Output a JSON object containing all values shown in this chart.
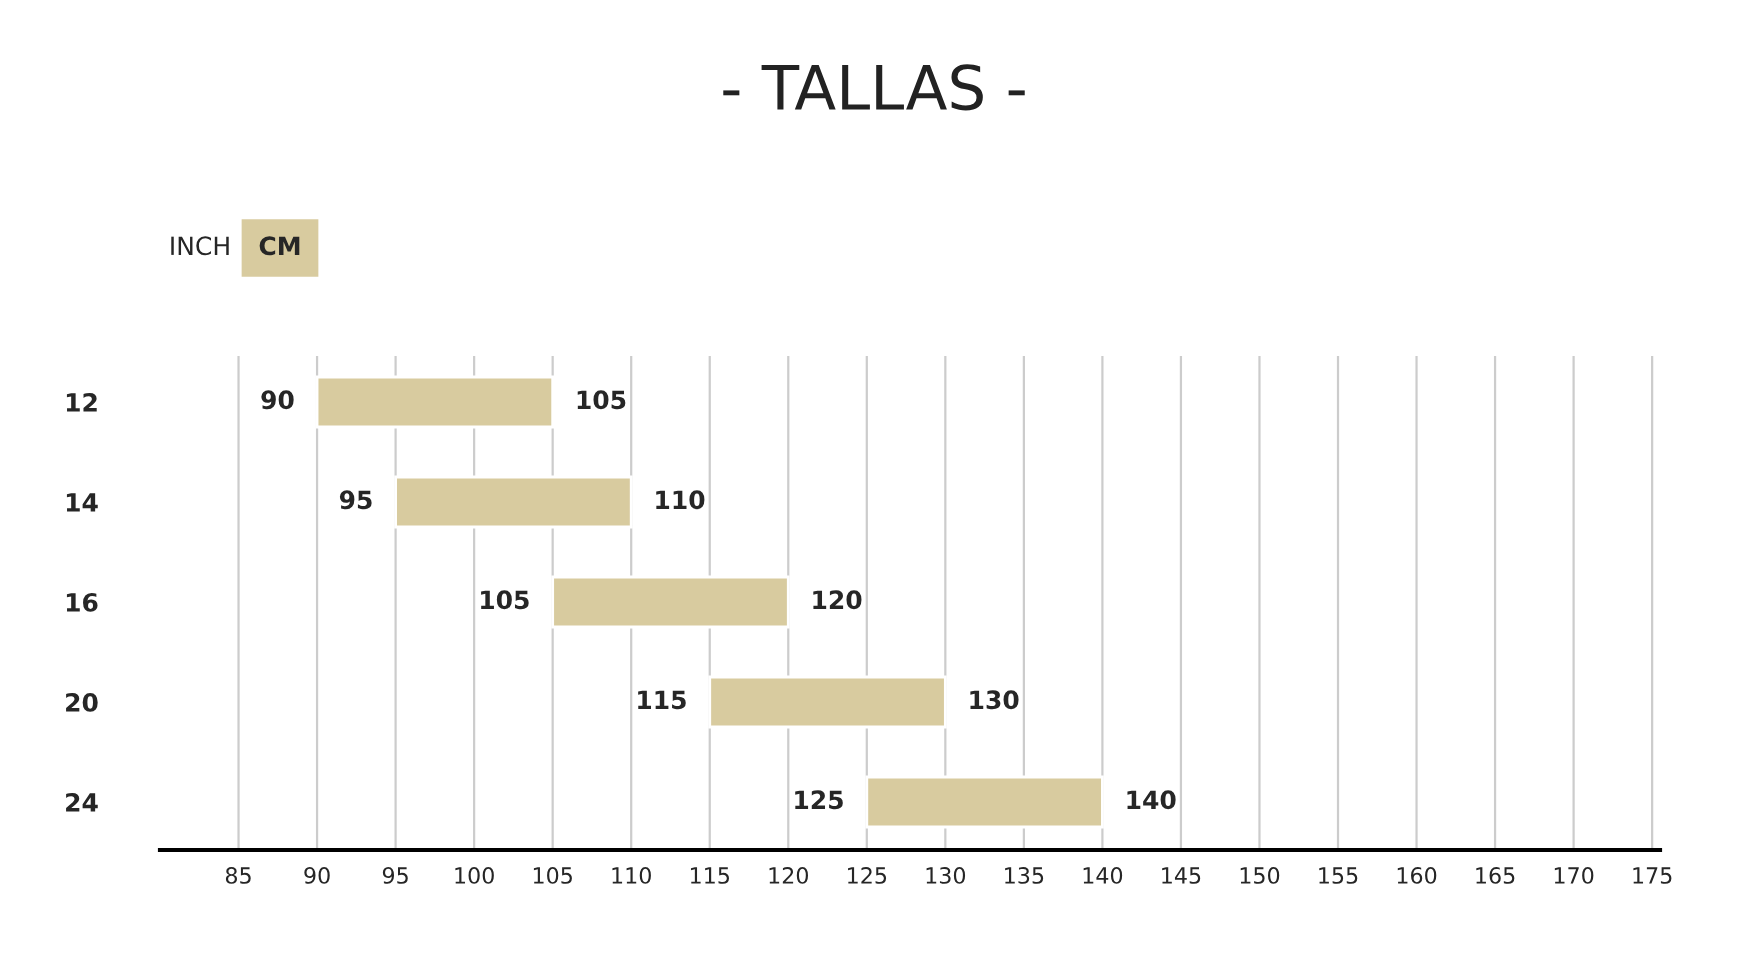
{
  "chart_data": {
    "type": "bar",
    "orientation": "horizontal",
    "title": "- TALLAS -",
    "categories": [
      "12",
      "14",
      "16",
      "20",
      "24"
    ],
    "base": [
      90,
      95,
      105,
      115,
      125
    ],
    "values": [
      15,
      15,
      15,
      15,
      15
    ],
    "color": "#d8cb9f",
    "xlim": [
      80,
      175.5
    ],
    "xticks": [
      85,
      90,
      95,
      100,
      105,
      110,
      115,
      120,
      125,
      130,
      135,
      140,
      145,
      150,
      155,
      160,
      165,
      170,
      175
    ],
    "grid": "x",
    "legend": false,
    "annotations": [
      {
        "text": "90",
        "x": 90,
        "y": "12"
      },
      {
        "text": "105",
        "x": 105,
        "y": "12"
      },
      {
        "text": "95",
        "x": 95,
        "y": "14"
      },
      {
        "text": "110",
        "x": 110,
        "y": "14"
      },
      {
        "text": "105",
        "x": 105,
        "y": "16"
      },
      {
        "text": "120",
        "x": 120,
        "y": "16"
      },
      {
        "text": "115",
        "x": 115,
        "y": "20"
      },
      {
        "text": "130",
        "x": 130,
        "y": "20"
      },
      {
        "text": "125",
        "x": 125,
        "y": "24"
      },
      {
        "text": "140",
        "x": 140,
        "y": "24"
      },
      "INCH",
      "CM"
    ]
  }
}
